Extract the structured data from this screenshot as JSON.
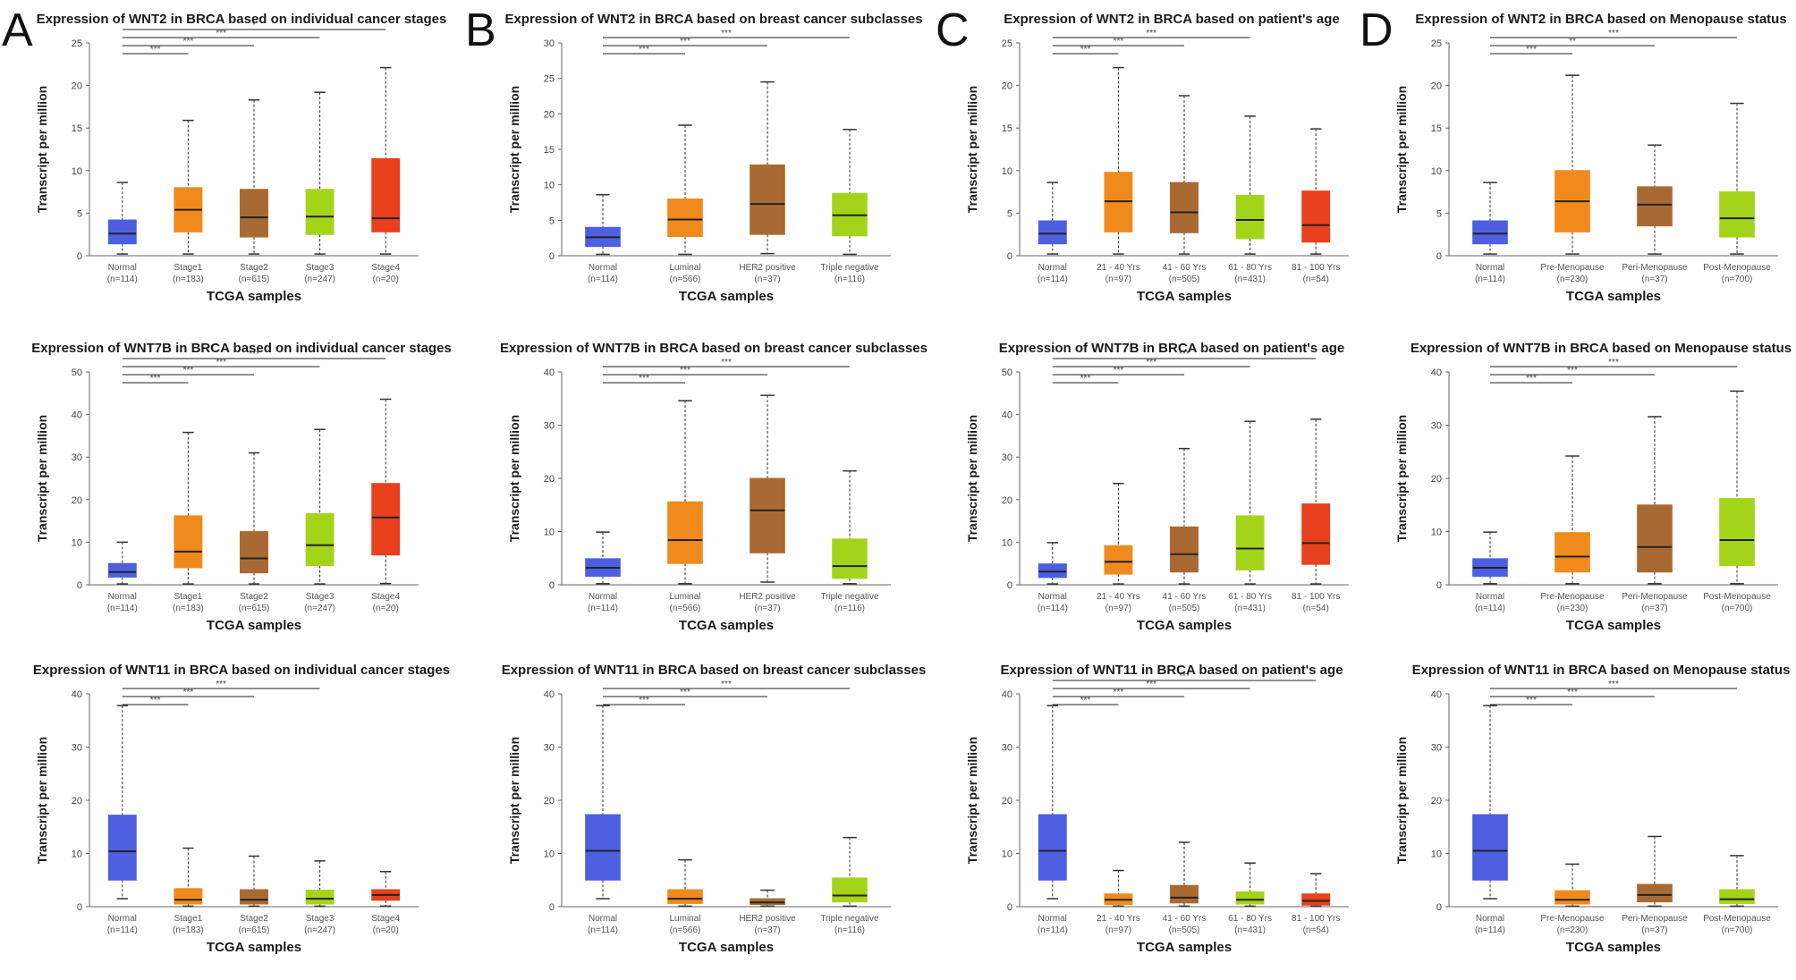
{
  "panels": [
    {
      "letter": "A"
    },
    {
      "letter": "B"
    },
    {
      "letter": "C"
    },
    {
      "letter": "D"
    }
  ],
  "axis_labels": {
    "y": "Transcript per million",
    "x": "TCGA samples"
  },
  "colors": {
    "normal": "#4d5fe0",
    "c1": "#f08a1c",
    "c2": "#a86a32",
    "c3": "#a4d41a",
    "c4": "#e8401c",
    "median": "#222222",
    "whisker": "#333333",
    "sig_line": "#222222"
  },
  "chart_data": [
    {
      "type": "box",
      "title": "Expression of WNT2 in BRCA based on individual cancer stages",
      "ylabel": "Transcript per million",
      "xlabel": "TCGA samples",
      "ylim": [
        0,
        25
      ],
      "yticks": [
        0,
        5,
        10,
        15,
        20,
        25
      ],
      "categories": [
        "Normal",
        "Stage1",
        "Stage2",
        "Stage3",
        "Stage4"
      ],
      "ns": [
        "(n=114)",
        "(n=183)",
        "(n=615)",
        "(n=247)",
        "(n=20)"
      ],
      "boxes": [
        [
          0.2,
          1.4,
          2.6,
          4.2,
          8.6
        ],
        [
          0.2,
          2.8,
          5.4,
          8.0,
          15.9
        ],
        [
          0.2,
          2.2,
          4.5,
          7.8,
          18.3
        ],
        [
          0.2,
          2.5,
          4.6,
          7.8,
          19.2
        ],
        [
          0.2,
          2.8,
          4.4,
          11.4,
          22.1
        ]
      ],
      "sig": [
        {
          "to": 1,
          "label": "***"
        },
        {
          "to": 2,
          "label": "***"
        },
        {
          "to": 3,
          "label": "***"
        },
        {
          "to": 4,
          "label": "*"
        }
      ]
    },
    {
      "type": "box",
      "title": "Expression of WNT2 in BRCA based on breast cancer subclasses",
      "ylabel": "Transcript per million",
      "xlabel": "TCGA samples",
      "ylim": [
        0,
        30
      ],
      "yticks": [
        0,
        5,
        10,
        15,
        20,
        25,
        30
      ],
      "categories": [
        "Normal",
        "Luminal",
        "HER2 positive",
        "Triple negative"
      ],
      "ns": [
        "(n=114)",
        "(n=566)",
        "(n=37)",
        "(n=116)"
      ],
      "boxes": [
        [
          0.2,
          1.3,
          2.6,
          4.0,
          8.6
        ],
        [
          0.2,
          2.7,
          5.1,
          8.0,
          18.4
        ],
        [
          0.3,
          3.0,
          7.3,
          12.8,
          24.5
        ],
        [
          0.2,
          2.8,
          5.7,
          8.8,
          17.8
        ]
      ],
      "sig": [
        {
          "to": 1,
          "label": "***"
        },
        {
          "to": 2,
          "label": "***"
        },
        {
          "to": 3,
          "label": "***"
        }
      ]
    },
    {
      "type": "box",
      "title": "Expression of WNT2 in BRCA based on patient's age",
      "ylabel": "Transcript per million",
      "xlabel": "TCGA samples",
      "ylim": [
        0,
        25
      ],
      "yticks": [
        0,
        5,
        10,
        15,
        20,
        25
      ],
      "categories": [
        "Normal",
        "21 - 40 Yrs",
        "41 - 60 Yrs",
        "61 - 80 Yrs",
        "81 - 100 Yrs"
      ],
      "ns": [
        "(n=114)",
        "(n=97)",
        "(n=505)",
        "(n=431)",
        "(n=54)"
      ],
      "boxes": [
        [
          0.2,
          1.4,
          2.6,
          4.1,
          8.6
        ],
        [
          0.2,
          2.8,
          6.4,
          9.8,
          22.1
        ],
        [
          0.2,
          2.7,
          5.1,
          8.6,
          18.8
        ],
        [
          0.2,
          2.0,
          4.2,
          7.1,
          16.4
        ],
        [
          0.2,
          1.6,
          3.6,
          7.6,
          14.9
        ]
      ],
      "sig": [
        {
          "to": 1,
          "label": "***"
        },
        {
          "to": 2,
          "label": "***"
        },
        {
          "to": 3,
          "label": "***"
        }
      ]
    },
    {
      "type": "box",
      "title": "Expression of WNT2 in BRCA based on Menopause status",
      "ylabel": "Transcript per million",
      "xlabel": "TCGA samples",
      "ylim": [
        0,
        25
      ],
      "yticks": [
        0,
        5,
        10,
        15,
        20,
        25
      ],
      "categories": [
        "Normal",
        "Pre-Menopause",
        "Peri-Menopause",
        "Post-Menopause"
      ],
      "ns": [
        "(n=114)",
        "(n=230)",
        "(n=37)",
        "(n=700)"
      ],
      "boxes": [
        [
          0.2,
          1.4,
          2.6,
          4.1,
          8.6
        ],
        [
          0.2,
          2.8,
          6.4,
          10.0,
          21.2
        ],
        [
          0.2,
          3.5,
          6.0,
          8.1,
          13.0
        ],
        [
          0.2,
          2.2,
          4.4,
          7.5,
          17.9
        ]
      ],
      "sig": [
        {
          "to": 1,
          "label": "***"
        },
        {
          "to": 2,
          "label": "**"
        },
        {
          "to": 3,
          "label": "***"
        }
      ]
    },
    {
      "type": "box",
      "title": "Expression of WNT7B in BRCA based on individual cancer stages",
      "ylabel": "Transcript per million",
      "xlabel": "TCGA samples",
      "ylim": [
        0,
        50
      ],
      "yticks": [
        0,
        10,
        20,
        30,
        40,
        50
      ],
      "categories": [
        "Normal",
        "Stage1",
        "Stage2",
        "Stage3",
        "Stage4"
      ],
      "ns": [
        "(n=114)",
        "(n=183)",
        "(n=615)",
        "(n=247)",
        "(n=20)"
      ],
      "boxes": [
        [
          0.2,
          1.8,
          3.0,
          5.0,
          10.0
        ],
        [
          0.2,
          4.0,
          7.8,
          16.2,
          35.8
        ],
        [
          0.2,
          2.8,
          6.2,
          12.5,
          31.0
        ],
        [
          0.2,
          4.5,
          9.3,
          16.7,
          36.5
        ],
        [
          0.3,
          7.0,
          15.8,
          23.8,
          43.6
        ]
      ],
      "sig": [
        {
          "to": 1,
          "label": "***"
        },
        {
          "to": 2,
          "label": "***"
        },
        {
          "to": 3,
          "label": "***"
        },
        {
          "to": 4,
          "label": "***"
        }
      ]
    },
    {
      "type": "box",
      "title": "Expression of WNT7B in BRCA based on breast cancer subclasses",
      "ylabel": "Transcript per million",
      "xlabel": "TCGA samples",
      "ylim": [
        0,
        40
      ],
      "yticks": [
        0,
        10,
        20,
        30,
        40
      ],
      "categories": [
        "Normal",
        "Luminal",
        "HER2 positive",
        "Triple negative"
      ],
      "ns": [
        "(n=114)",
        "(n=566)",
        "(n=37)",
        "(n=116)"
      ],
      "boxes": [
        [
          0.2,
          1.6,
          3.2,
          4.9,
          9.9
        ],
        [
          0.2,
          4.0,
          8.4,
          15.6,
          34.6
        ],
        [
          0.5,
          6.0,
          14.0,
          20.0,
          35.6
        ],
        [
          0.2,
          1.2,
          3.5,
          8.6,
          21.4
        ]
      ],
      "sig": [
        {
          "to": 1,
          "label": "***"
        },
        {
          "to": 2,
          "label": "***"
        },
        {
          "to": 3,
          "label": "***"
        }
      ]
    },
    {
      "type": "box",
      "title": "Expression of WNT7B in BRCA based on patient's age",
      "ylabel": "Transcript per million",
      "xlabel": "TCGA samples",
      "ylim": [
        0,
        50
      ],
      "yticks": [
        0,
        10,
        20,
        30,
        40,
        50
      ],
      "categories": [
        "Normal",
        "21 - 40 Yrs",
        "41 - 60 Yrs",
        "61 - 80 Yrs",
        "81 - 100 Yrs"
      ],
      "ns": [
        "(n=114)",
        "(n=97)",
        "(n=505)",
        "(n=431)",
        "(n=54)"
      ],
      "boxes": [
        [
          0.2,
          1.7,
          3.1,
          4.9,
          9.9
        ],
        [
          0.2,
          2.5,
          5.4,
          9.2,
          23.8
        ],
        [
          0.2,
          3.0,
          7.2,
          13.6,
          32.0
        ],
        [
          0.2,
          3.5,
          8.5,
          16.2,
          38.4
        ],
        [
          0.2,
          4.8,
          9.8,
          19.0,
          38.9
        ]
      ],
      "sig": [
        {
          "to": 1,
          "label": "***"
        },
        {
          "to": 2,
          "label": "***"
        },
        {
          "to": 3,
          "label": "***"
        },
        {
          "to": 4,
          "label": "***"
        }
      ]
    },
    {
      "type": "box",
      "title": "Expression of WNT7B in BRCA based on Menopause status",
      "ylabel": "Transcript per million",
      "xlabel": "TCGA samples",
      "ylim": [
        0,
        40
      ],
      "yticks": [
        0,
        10,
        20,
        30,
        40
      ],
      "categories": [
        "Normal",
        "Pre-Menopause",
        "Peri-Menopause",
        "Post-Menopause"
      ],
      "ns": [
        "(n=114)",
        "(n=230)",
        "(n=37)",
        "(n=700)"
      ],
      "boxes": [
        [
          0.2,
          1.6,
          3.2,
          4.9,
          9.9
        ],
        [
          0.2,
          2.4,
          5.3,
          9.8,
          24.2
        ],
        [
          0.2,
          2.4,
          7.1,
          15.0,
          31.6
        ],
        [
          0.2,
          3.6,
          8.4,
          16.2,
          36.4
        ]
      ],
      "sig": [
        {
          "to": 1,
          "label": "***"
        },
        {
          "to": 2,
          "label": "***"
        },
        {
          "to": 3,
          "label": "***"
        }
      ]
    },
    {
      "type": "box",
      "title": "Expression of WNT11 in BRCA based on individual cancer stages",
      "ylabel": "Transcript per million",
      "xlabel": "TCGA samples",
      "ylim": [
        0,
        40
      ],
      "yticks": [
        0,
        10,
        20,
        30,
        40
      ],
      "categories": [
        "Normal",
        "Stage1",
        "Stage2",
        "Stage3",
        "Stage4"
      ],
      "ns": [
        "(n=114)",
        "(n=183)",
        "(n=615)",
        "(n=247)",
        "(n=20)"
      ],
      "boxes": [
        [
          1.5,
          5.0,
          10.4,
          17.2,
          37.8
        ],
        [
          0.1,
          0.5,
          1.3,
          3.4,
          11.0
        ],
        [
          0.1,
          0.5,
          1.3,
          3.2,
          9.5
        ],
        [
          0.1,
          0.5,
          1.5,
          3.1,
          8.6
        ],
        [
          0.1,
          1.2,
          2.2,
          3.2,
          6.6
        ]
      ],
      "sig": [
        {
          "to": 1,
          "label": "***"
        },
        {
          "to": 2,
          "label": "***"
        },
        {
          "to": 3,
          "label": "***"
        }
      ]
    },
    {
      "type": "box",
      "title": "Expression of WNT11 in BRCA based on breast cancer subclasses",
      "ylabel": "Transcript per million",
      "xlabel": "TCGA samples",
      "ylim": [
        0,
        40
      ],
      "yticks": [
        0,
        10,
        20,
        30,
        40
      ],
      "categories": [
        "Normal",
        "Luminal",
        "HER2 positive",
        "Triple negative"
      ],
      "ns": [
        "(n=114)",
        "(n=566)",
        "(n=37)",
        "(n=116)"
      ],
      "boxes": [
        [
          1.5,
          5.0,
          10.5,
          17.3,
          37.8
        ],
        [
          0.1,
          0.6,
          1.5,
          3.2,
          8.8
        ],
        [
          0.1,
          0.4,
          0.8,
          1.5,
          3.1
        ],
        [
          0.1,
          0.9,
          2.1,
          5.4,
          13.0
        ]
      ],
      "sig": [
        {
          "to": 1,
          "label": "***"
        },
        {
          "to": 2,
          "label": "***"
        },
        {
          "to": 3,
          "label": "***"
        }
      ]
    },
    {
      "type": "box",
      "title": "Expression of WNT11 in BRCA based on patient's age",
      "ylabel": "Transcript per million",
      "xlabel": "TCGA samples",
      "ylim": [
        0,
        40
      ],
      "yticks": [
        0,
        10,
        20,
        30,
        40
      ],
      "categories": [
        "Normal",
        "21 - 40 Yrs",
        "41 - 60 Yrs",
        "61 - 80 Yrs",
        "81 - 100 Yrs"
      ],
      "ns": [
        "(n=114)",
        "(n=97)",
        "(n=505)",
        "(n=431)",
        "(n=54)"
      ],
      "boxes": [
        [
          1.5,
          5.0,
          10.5,
          17.3,
          37.8
        ],
        [
          0.1,
          0.4,
          1.3,
          2.4,
          6.8
        ],
        [
          0.1,
          0.7,
          1.7,
          4.0,
          12.1
        ],
        [
          0.1,
          0.5,
          1.3,
          2.8,
          8.2
        ],
        [
          0.1,
          0.3,
          1.1,
          2.4,
          6.2
        ]
      ],
      "sig": [
        {
          "to": 1,
          "label": "***"
        },
        {
          "to": 2,
          "label": "***"
        },
        {
          "to": 3,
          "label": "***"
        },
        {
          "to": 4,
          "label": "***"
        }
      ]
    },
    {
      "type": "box",
      "title": "Expression of WNT11 in BRCA based on Menopause status",
      "ylabel": "Transcript per million",
      "xlabel": "TCGA samples",
      "ylim": [
        0,
        40
      ],
      "yticks": [
        0,
        10,
        20,
        30,
        40
      ],
      "categories": [
        "Normal",
        "Pre-Menopause",
        "Peri-Menopause",
        "Post-Menopause"
      ],
      "ns": [
        "(n=114)",
        "(n=230)",
        "(n=37)",
        "(n=700)"
      ],
      "boxes": [
        [
          1.5,
          5.0,
          10.5,
          17.3,
          37.8
        ],
        [
          0.1,
          0.5,
          1.3,
          3.0,
          8.0
        ],
        [
          0.1,
          0.9,
          2.2,
          4.2,
          13.2
        ],
        [
          0.1,
          0.6,
          1.4,
          3.2,
          9.6
        ]
      ],
      "sig": [
        {
          "to": 1,
          "label": "***"
        },
        {
          "to": 2,
          "label": "***"
        },
        {
          "to": 3,
          "label": "***"
        }
      ]
    }
  ]
}
